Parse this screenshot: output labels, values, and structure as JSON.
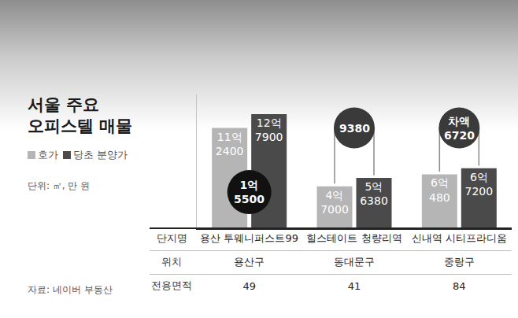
{
  "chart_data": {
    "type": "bar",
    "title": "서울 주요 오피스텔 매물",
    "subtitle": "단위: ㎡, 만 원",
    "source": "자료: 네이버 부동산",
    "categories": [
      "용산 투웨니퍼스트99",
      "힐스테이트 청량리역",
      "신내역 시티프라디움"
    ],
    "series": [
      {
        "name": "호가",
        "color": "#b5b5b5",
        "values": [
          112400,
          47000,
          60480
        ],
        "value_labels": [
          "11억 2400",
          "4억 7000",
          "6억 480"
        ]
      },
      {
        "name": "당초 분양가",
        "color": "#4a4a4a",
        "values": [
          127900,
          56380,
          67200
        ],
        "value_labels": [
          "12억 7900",
          "5억 6380",
          "6억 7200"
        ]
      }
    ],
    "differences": {
      "values": [
        15500,
        9380,
        6720
      ],
      "value_labels": [
        "1억 5500",
        "9380",
        "차액 6720"
      ]
    },
    "table": {
      "header": "단지명",
      "rows": [
        {
          "label": "위치",
          "cells": [
            "용산구",
            "동대문구",
            "중랑구"
          ]
        },
        {
          "label": "전용면적",
          "cells": [
            49,
            41,
            84
          ]
        }
      ]
    },
    "ylim": [
      0,
      150000
    ],
    "yticks": [],
    "grid": false,
    "tick_labels": false,
    "data_labels": true,
    "legend": "left"
  }
}
